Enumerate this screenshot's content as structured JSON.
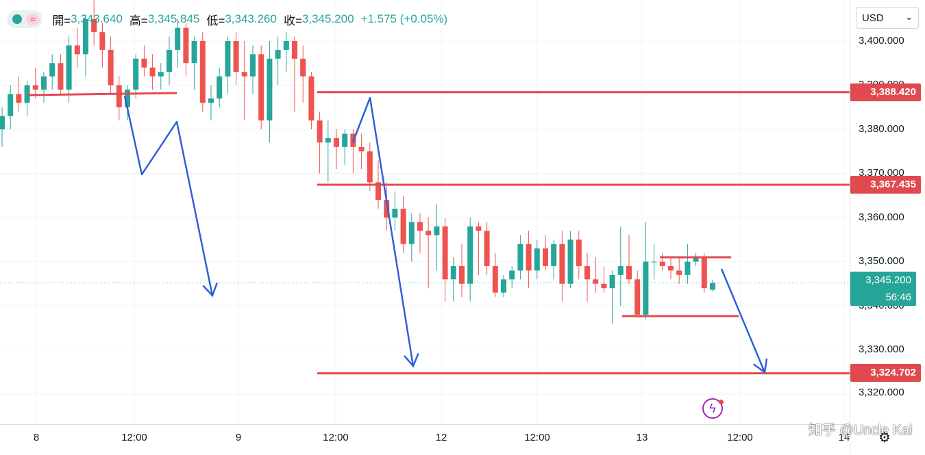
{
  "legend": {
    "wave_icon": "≈",
    "open_label": "開=",
    "open_value": "3,343.640",
    "high_label": "高=",
    "high_value": "3,345.845",
    "low_label": "低=",
    "low_value": "3,343.260",
    "close_label": "收=",
    "close_value": "3,345.200",
    "change": "+1.575 (+0.05%)"
  },
  "currency": "USD",
  "price_axis": {
    "ticks": [
      "3,400.000",
      "3,390.000",
      "3,380.000",
      "3,370.000",
      "3,360.000",
      "3,350.000",
      "3,340.000",
      "3,330.000",
      "3,320.000"
    ],
    "levels": [
      {
        "label": "3,388.420",
        "value": 3388.42
      },
      {
        "label": "3,367.435",
        "value": 3367.435
      },
      {
        "label": "3,324.702",
        "value": 3324.702
      }
    ],
    "current_price": "3,345.200",
    "countdown": "56:46"
  },
  "time_axis": {
    "ticks": [
      "8",
      "12:00",
      "9",
      "12:00",
      "12",
      "12:00",
      "13",
      "12:00",
      "14"
    ]
  },
  "watermark": "知乎 @Uncle Kai",
  "colors": {
    "up": "#26a69a",
    "down": "#ef5350",
    "level": "#e04a4f",
    "arrow": "#2f5fd8"
  },
  "chart_data": {
    "type": "candlestick",
    "symbol_currency": "USD",
    "ylim": [
      3316,
      3412
    ],
    "current_price": 3345.2,
    "horizontal_levels": [
      3388.42,
      3367.435,
      3324.702
    ],
    "candles": [
      [
        3380,
        3385,
        3376,
        3383
      ],
      [
        3383,
        3390,
        3380,
        3388
      ],
      [
        3388,
        3392,
        3384,
        3386
      ],
      [
        3386,
        3391,
        3383,
        3390
      ],
      [
        3390,
        3394,
        3387,
        3389
      ],
      [
        3389,
        3393,
        3386,
        3392
      ],
      [
        3392,
        3397,
        3389,
        3395
      ],
      [
        3395,
        3397,
        3388,
        3389
      ],
      [
        3389,
        3401,
        3386,
        3399
      ],
      [
        3399,
        3403,
        3394,
        3397
      ],
      [
        3397,
        3406,
        3392,
        3405
      ],
      [
        3405,
        3410,
        3399,
        3402
      ],
      [
        3402,
        3404,
        3394,
        3398
      ],
      [
        3398,
        3401,
        3388,
        3390
      ],
      [
        3390,
        3392,
        3382,
        3385
      ],
      [
        3385,
        3390,
        3382,
        3389
      ],
      [
        3389,
        3397,
        3387,
        3396
      ],
      [
        3396,
        3399,
        3392,
        3394
      ],
      [
        3394,
        3397,
        3389,
        3392
      ],
      [
        3392,
        3395,
        3389,
        3393
      ],
      [
        3393,
        3401,
        3390,
        3398
      ],
      [
        3398,
        3405,
        3394,
        3403
      ],
      [
        3403,
        3404,
        3392,
        3395
      ],
      [
        3395,
        3401,
        3389,
        3400
      ],
      [
        3400,
        3402,
        3384,
        3386
      ],
      [
        3386,
        3390,
        3382,
        3387
      ],
      [
        3387,
        3394,
        3385,
        3392
      ],
      [
        3392,
        3401,
        3388,
        3400
      ],
      [
        3400,
        3402,
        3390,
        3393
      ],
      [
        3393,
        3400,
        3382,
        3392
      ],
      [
        3392,
        3399,
        3388,
        3397
      ],
      [
        3397,
        3399,
        3380,
        3382
      ],
      [
        3382,
        3400,
        3377,
        3396
      ],
      [
        3396,
        3401,
        3390,
        3398
      ],
      [
        3398,
        3402,
        3393,
        3400
      ],
      [
        3400,
        3401,
        3384,
        3396
      ],
      [
        3396,
        3399,
        3386,
        3392
      ],
      [
        3392,
        3393,
        3380,
        3382
      ],
      [
        3382,
        3384,
        3370,
        3377
      ],
      [
        3377,
        3382,
        3368,
        3378
      ],
      [
        3378,
        3380,
        3371,
        3376
      ],
      [
        3376,
        3380,
        3372,
        3379
      ],
      [
        3379,
        3380,
        3370,
        3376
      ],
      [
        3376,
        3379,
        3371,
        3375
      ],
      [
        3375,
        3377,
        3366,
        3368
      ],
      [
        3368,
        3373,
        3362,
        3364
      ],
      [
        3364,
        3368,
        3357,
        3360
      ],
      [
        3360,
        3366,
        3357,
        3362
      ],
      [
        3362,
        3365,
        3352,
        3354
      ],
      [
        3354,
        3361,
        3350,
        3359
      ],
      [
        3359,
        3361,
        3352,
        3357
      ],
      [
        3357,
        3360,
        3344,
        3356
      ],
      [
        3356,
        3363,
        3348,
        3358
      ],
      [
        3358,
        3360,
        3341,
        3346
      ],
      [
        3346,
        3351,
        3341,
        3349
      ],
      [
        3349,
        3354,
        3342,
        3345
      ],
      [
        3345,
        3360,
        3341,
        3358
      ],
      [
        3358,
        3359,
        3347,
        3357
      ],
      [
        3357,
        3359,
        3347,
        3349
      ],
      [
        3349,
        3352,
        3342,
        3343
      ],
      [
        3343,
        3347,
        3342,
        3346
      ],
      [
        3346,
        3349,
        3344,
        3348
      ],
      [
        3348,
        3356,
        3346,
        3354
      ],
      [
        3354,
        3357,
        3344,
        3348
      ],
      [
        3348,
        3355,
        3346,
        3353
      ],
      [
        3353,
        3356,
        3348,
        3349
      ],
      [
        3349,
        3355,
        3346,
        3354
      ],
      [
        3354,
        3357,
        3341,
        3345
      ],
      [
        3345,
        3357,
        3344,
        3355
      ],
      [
        3355,
        3357,
        3346,
        3349
      ],
      [
        3349,
        3352,
        3341,
        3346
      ],
      [
        3346,
        3351,
        3343,
        3345
      ],
      [
        3345,
        3349,
        3343,
        3344
      ],
      [
        3344,
        3348,
        3336,
        3347
      ],
      [
        3347,
        3358,
        3340,
        3349
      ],
      [
        3349,
        3356,
        3345,
        3346
      ],
      [
        3346,
        3348,
        3338,
        3338
      ],
      [
        3338,
        3359,
        3337,
        3350
      ],
      [
        3350,
        3354,
        3346,
        3350
      ],
      [
        3350,
        3352,
        3348,
        3349
      ],
      [
        3349,
        3351,
        3346,
        3348
      ],
      [
        3348,
        3351,
        3345,
        3347
      ],
      [
        3347,
        3354,
        3345,
        3350
      ],
      [
        3350,
        3352,
        3349,
        3351
      ],
      [
        3351,
        3352,
        3343,
        3344
      ],
      [
        3343.64,
        3345.845,
        3343.26,
        3345.2
      ]
    ],
    "annotations": [
      {
        "type": "arrow",
        "points": [
          [
            182,
            140
          ],
          [
            207,
            255
          ],
          [
            258,
            178
          ],
          [
            310,
            432
          ]
        ]
      },
      {
        "type": "arrow",
        "points": [
          [
            515,
            208
          ],
          [
            540,
            143
          ],
          [
            603,
            535
          ]
        ]
      },
      {
        "type": "arrow",
        "points": [
          [
            1053,
            393
          ],
          [
            1116,
            544
          ]
        ]
      }
    ]
  }
}
